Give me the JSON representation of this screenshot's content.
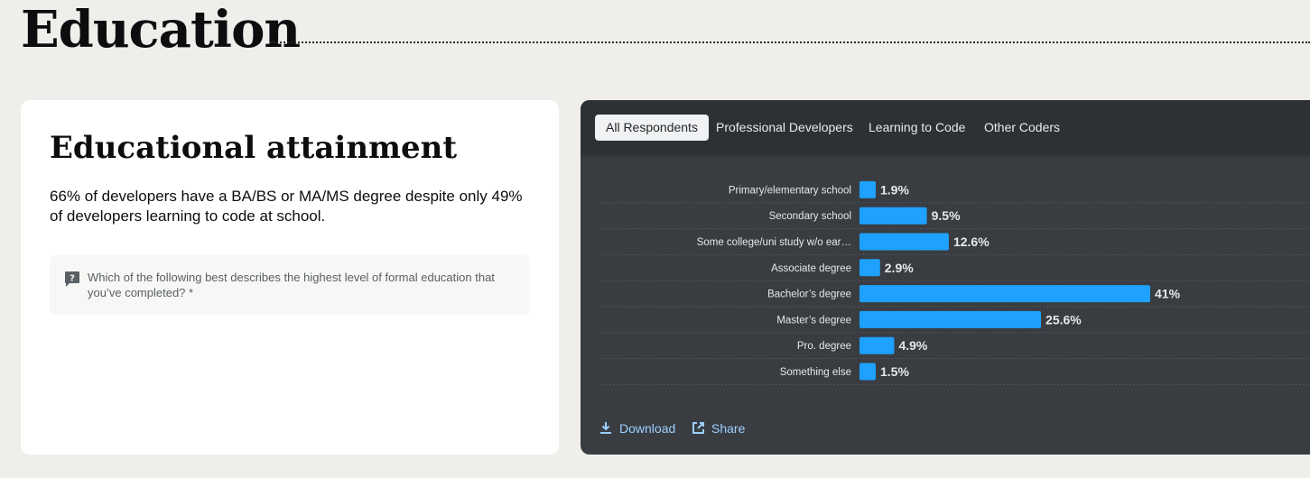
{
  "section": {
    "title": "Education"
  },
  "card": {
    "title": "Educational attainment",
    "description": "66% of developers have a BA/BS or MA/MS degree despite only 49% of developers learning to code at school.",
    "question": "Which of the following best describes the highest level of formal education that you’ve completed? *",
    "question_icon": "question-bubble-icon"
  },
  "tabs": [
    {
      "label": "All Respondents",
      "active": true
    },
    {
      "label": "Professional Developers",
      "active": false
    },
    {
      "label": "Learning to Code",
      "active": false
    },
    {
      "label": "Other Coders",
      "active": false
    }
  ],
  "footer": {
    "download_label": "Download",
    "download_icon": "download-icon",
    "share_label": "Share",
    "share_icon": "share-external-icon"
  },
  "colors": {
    "bar": "#1ea1ff",
    "panel_bg": "#393d42",
    "tab_bar_bg": "#2d3135",
    "link": "#9ccfff",
    "page_bg": "#efeeeb"
  },
  "chart_data": {
    "type": "bar",
    "orientation": "horizontal",
    "categories": [
      "Primary/elementary school",
      "Secondary school",
      "Some college/uni study w/o ear…",
      "Associate degree",
      "Bachelor’s degree",
      "Master’s degree",
      "Pro. degree",
      "Something else"
    ],
    "values": [
      1.9,
      9.5,
      12.6,
      2.9,
      41,
      25.6,
      4.9,
      1.5
    ],
    "value_labels": [
      "1.9%",
      "9.5%",
      "12.6%",
      "2.9%",
      "41%",
      "25.6%",
      "4.9%",
      "1.5%"
    ],
    "unit": "%",
    "xlim": [
      0,
      41
    ],
    "grid": false
  }
}
